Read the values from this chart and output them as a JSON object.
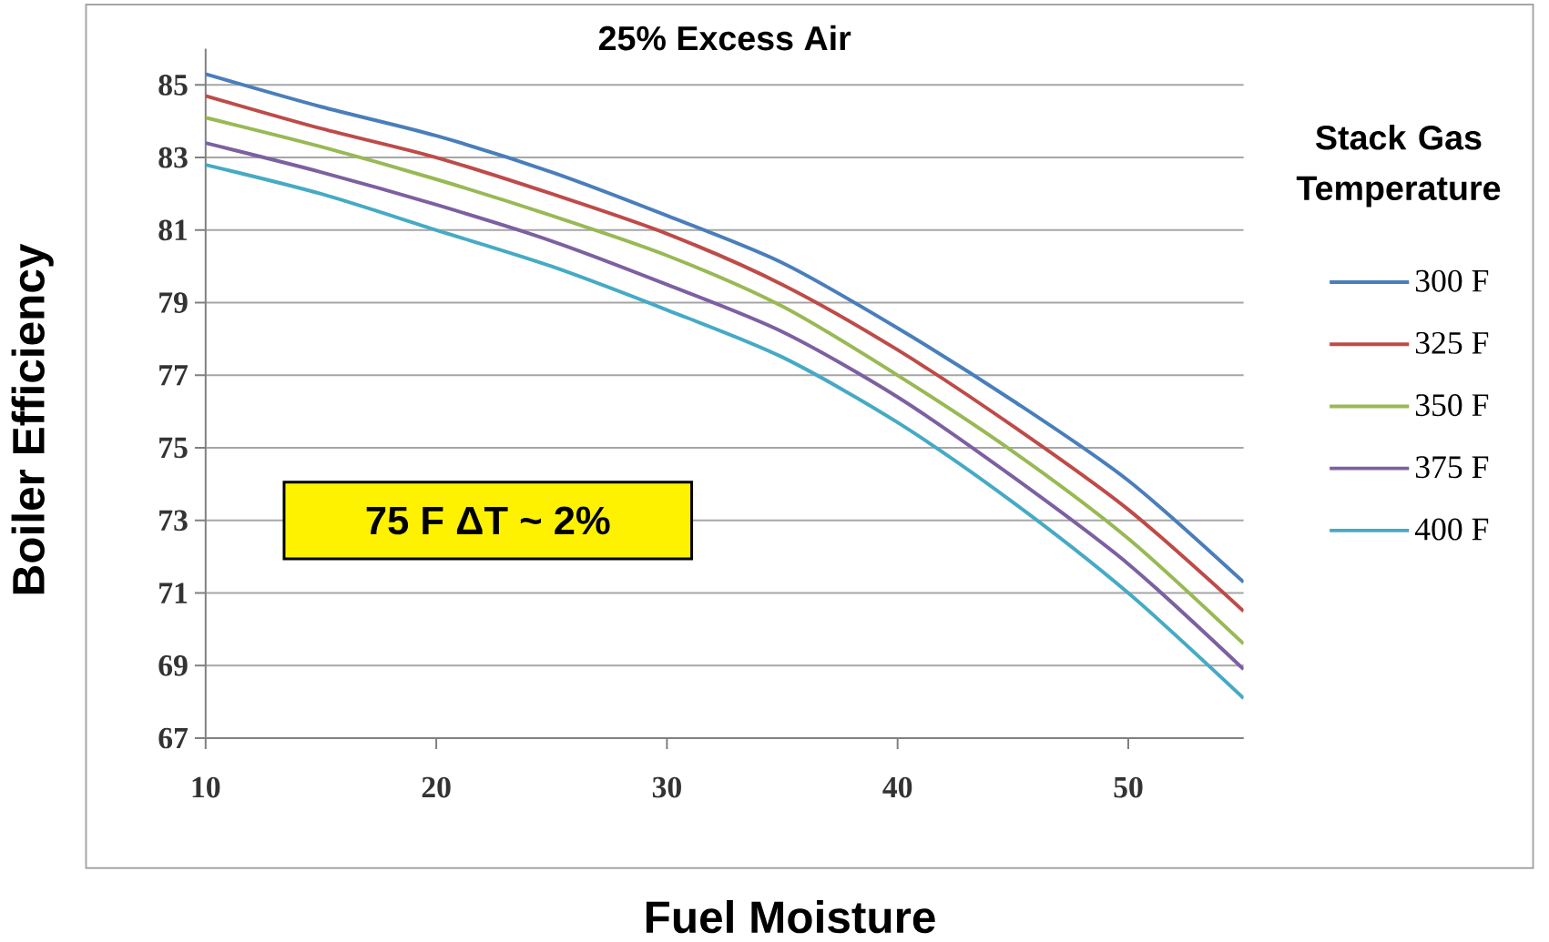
{
  "chart_data": {
    "type": "line",
    "title": "25% Excess Air",
    "xlabel": "Fuel Moisture",
    "ylabel": "Boiler Efficiency",
    "legend_title": "Stack Gas Temperature",
    "annotations": [
      "75 F ΔT ~  2%"
    ],
    "x": [
      10,
      15,
      20,
      25,
      30,
      35,
      40,
      45,
      50,
      55
    ],
    "xlim": [
      10,
      55
    ],
    "ylim": [
      67,
      86
    ],
    "xticks": [
      10,
      20,
      30,
      40,
      50
    ],
    "yticks": [
      67,
      69,
      71,
      73,
      75,
      77,
      79,
      81,
      83,
      85
    ],
    "grid": "y",
    "legend": "right",
    "line_style": "solid",
    "marker": "none",
    "series": [
      {
        "name": "300 F",
        "color": "#4a7ebb",
        "values": [
          85.3,
          84.4,
          83.6,
          82.6,
          81.4,
          80.1,
          78.3,
          76.3,
          74.1,
          71.3
        ]
      },
      {
        "name": "325 F",
        "color": "#be4b48",
        "values": [
          84.7,
          83.8,
          83.0,
          82.0,
          80.9,
          79.5,
          77.7,
          75.6,
          73.3,
          70.5
        ]
      },
      {
        "name": "350 F",
        "color": "#98b954",
        "values": [
          84.1,
          83.3,
          82.4,
          81.4,
          80.3,
          78.9,
          77.0,
          74.9,
          72.5,
          69.6
        ]
      },
      {
        "name": "375 F",
        "color": "#7d60a0",
        "values": [
          83.4,
          82.6,
          81.7,
          80.7,
          79.5,
          78.2,
          76.4,
          74.2,
          71.8,
          68.9
        ]
      },
      {
        "name": "400 F",
        "color": "#46aac5",
        "values": [
          82.8,
          82.0,
          81.0,
          80.0,
          78.8,
          77.5,
          75.7,
          73.5,
          71.0,
          68.1
        ]
      }
    ]
  }
}
